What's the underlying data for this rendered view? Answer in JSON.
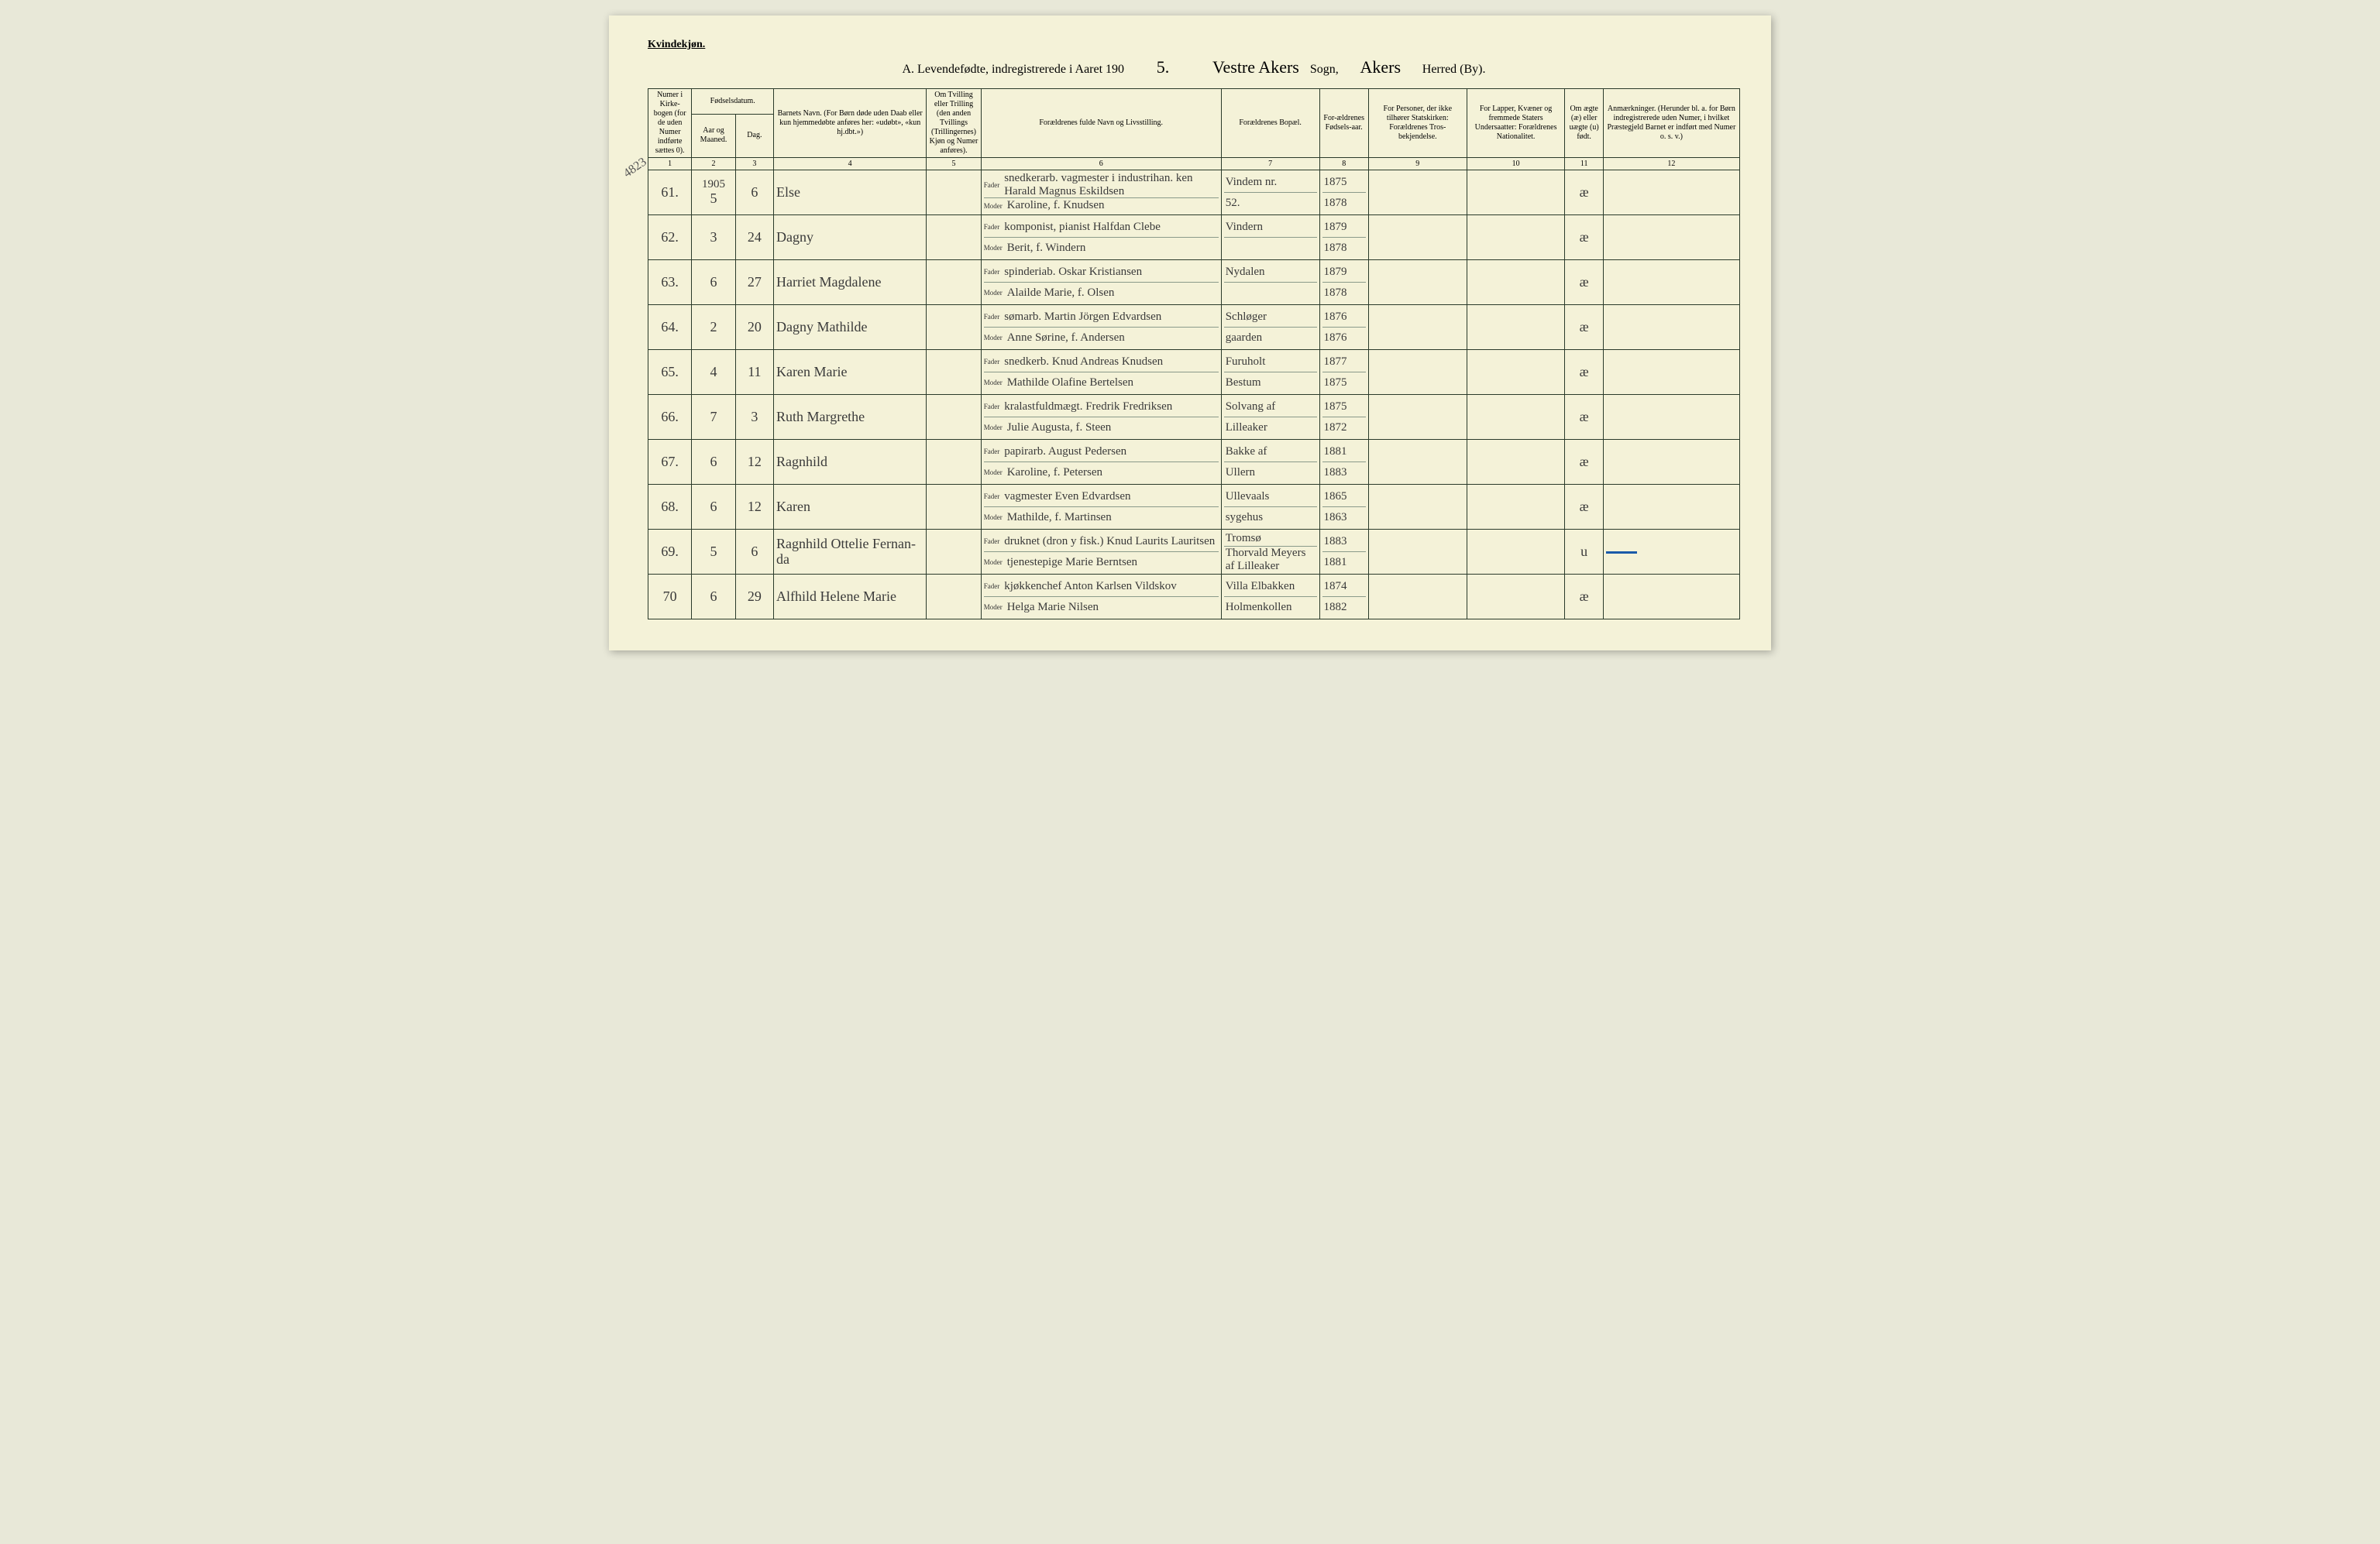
{
  "gender_label": "Kvindekjøn.",
  "title": {
    "prefix": "A.  Levendefødte, indregistrerede i Aaret 190",
    "year_suffix": "5.",
    "sogn_hand": "Vestre Akers",
    "sogn_label": "Sogn,",
    "herred_hand": "Akers",
    "herred_label": "Herred (By)."
  },
  "margin_note": "4823",
  "headers": {
    "c1": "Numer i Kirke-bogen (for de uden Numer indførte sættes 0).",
    "c2_top": "Fødselsdatum.",
    "c2a": "Aar og Maaned.",
    "c2b": "Dag.",
    "c3": "Barnets Navn.\n(For Børn døde uden Daab eller kun hjemmedøbte anføres her: «udøbt», «kun hj.dbt.»)",
    "c4": "Om Tvilling eller Trilling (den anden Tvillings (Trillingernes) Kjøn og Numer anføres).",
    "c5": "Forældrenes fulde Navn og Livsstilling.",
    "c6": "Forældrenes Bopæl.",
    "c7": "For-ældrenes Fødsels-aar.",
    "c8": "For Personer, der ikke tilhører Statskirken: Forældrenes Tros-bekjendelse.",
    "c9": "For Lapper, Kvæner og fremmede Staters Undersaatter: Forældrenes Nationalitet.",
    "c10": "Om ægte (æ) eller uægte (u) født.",
    "c11": "Anmærkninger.\n(Herunder bl. a. for Børn indregistrerede uden Numer, i hvilket Præstegjeld Barnet er indført med Numer o. s. v.)"
  },
  "colnums": [
    "1",
    "2",
    "3",
    "4",
    "5",
    "6",
    "7",
    "8",
    "9",
    "10",
    "11",
    "12"
  ],
  "rows": [
    {
      "num": "61.",
      "year_top": "1905",
      "month": "5",
      "day": "6",
      "name": "Else",
      "father": "snedkerarb. vagmester i industrihan. ken Harald Magnus Eskildsen",
      "mother": "Karoline, f. Knudsen",
      "bopal_top": "Vindem nr.",
      "bopal_bot": "52.",
      "fy": "1875",
      "my": "1878",
      "legit": "æ"
    },
    {
      "num": "62.",
      "month": "3",
      "day": "24",
      "name": "Dagny",
      "father": "komponist, pianist Halfdan Clebe",
      "mother": "Berit, f. Windern",
      "bopal_top": "Vindern",
      "bopal_bot": "",
      "fy": "1879",
      "my": "1878",
      "legit": "æ"
    },
    {
      "num": "63.",
      "month": "6",
      "day": "27",
      "name": "Harriet Magdalene",
      "father": "spinderiab. Oskar Kristiansen",
      "mother": "Alailde Marie, f. Olsen",
      "bopal_top": "Nydalen",
      "bopal_bot": "",
      "fy": "1879",
      "my": "1878",
      "legit": "æ"
    },
    {
      "num": "64.",
      "month": "2",
      "day": "20",
      "name": "Dagny Mathilde",
      "father": "sømarb. Martin Jörgen Edvardsen",
      "mother": "Anne Sørine, f. Andersen",
      "bopal_top": "Schløger",
      "bopal_bot": "gaarden",
      "fy": "1876",
      "my": "1876",
      "legit": "æ"
    },
    {
      "num": "65.",
      "month": "4",
      "day": "11",
      "name": "Karen Marie",
      "father": "snedkerb. Knud Andreas Knudsen",
      "mother": "Mathilde Olafine Bertelsen",
      "bopal_top": "Furuholt",
      "bopal_bot": "Bestum",
      "fy": "1877",
      "my": "1875",
      "legit": "æ"
    },
    {
      "num": "66.",
      "month": "7",
      "day": "3",
      "name": "Ruth Margrethe",
      "father": "kralastfuldmægt. Fredrik Fredriksen",
      "mother": "Julie Augusta, f. Steen",
      "bopal_top": "Solvang af",
      "bopal_bot": "Lilleaker",
      "fy": "1875",
      "my": "1872",
      "legit": "æ"
    },
    {
      "num": "67.",
      "month": "6",
      "day": "12",
      "name": "Ragnhild",
      "father": "papirarb. August Pedersen",
      "mother": "Karoline, f. Petersen",
      "bopal_top": "Bakke af",
      "bopal_bot": "Ullern",
      "fy": "1881",
      "my": "1883",
      "legit": "æ"
    },
    {
      "num": "68.",
      "month": "6",
      "day": "12",
      "name": "Karen",
      "father": "vagmester Even Edvardsen",
      "mother": "Mathilde, f. Martinsen",
      "bopal_top": "Ullevaals",
      "bopal_bot": "sygehus",
      "fy": "1865",
      "my": "1863",
      "legit": "æ"
    },
    {
      "num": "69.",
      "month": "5",
      "day": "6",
      "name": "Ragnhild Ottelie Fernan-da",
      "father": "druknet (dron y fisk.) Knud Laurits Lauritsen",
      "mother": "tjenestepige Marie Berntsen",
      "bopal_top": "Tromsø",
      "bopal_bot": "Thorvald Meyers af Lilleaker",
      "fy": "1883",
      "my": "1881",
      "legit": "u",
      "remark_blue": true
    },
    {
      "num": "70",
      "month": "6",
      "day": "29",
      "name": "Alfhild Helene Marie",
      "father": "kjøkkenchef Anton Karlsen Vildskov",
      "mother": "Helga Marie Nilsen",
      "bopal_top": "Villa Elbakken",
      "bopal_bot": "Holmenkollen",
      "fy": "1874",
      "my": "1882",
      "legit": "æ"
    }
  ]
}
